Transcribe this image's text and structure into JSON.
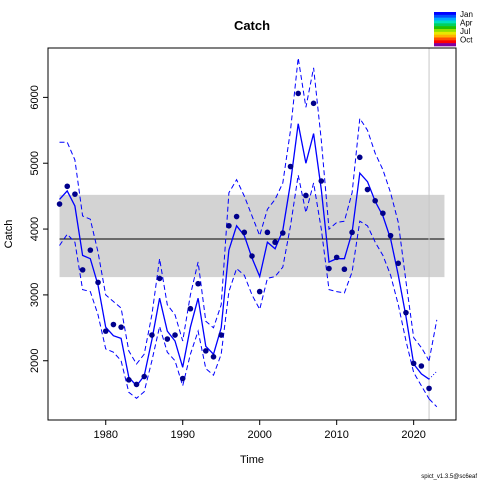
{
  "chart_data": {
    "type": "line",
    "title": "Catch",
    "xlabel": "Time",
    "ylabel": "Catch",
    "xlim": [
      1972.5,
      2025.5
    ],
    "ylim": [
      1100,
      6750
    ],
    "xticks": [
      1980,
      1990,
      2000,
      2010,
      2020
    ],
    "yticks": [
      2000,
      3000,
      4000,
      5000,
      6000
    ],
    "mean_line": 3850,
    "mean_band": [
      3270,
      4520
    ],
    "vline_x": 2022,
    "points": {
      "x": [
        1974,
        1975,
        1976,
        1977,
        1978,
        1979,
        1980,
        1981,
        1982,
        1983,
        1984,
        1985,
        1986,
        1987,
        1988,
        1989,
        1990,
        1991,
        1992,
        1993,
        1994,
        1995,
        1996,
        1997,
        1998,
        1999,
        2000,
        2001,
        2002,
        2003,
        2004,
        2005,
        2006,
        2007,
        2008,
        2009,
        2010,
        2011,
        2012,
        2013,
        2014,
        2015,
        2016,
        2017,
        2018,
        2019,
        2020,
        2021,
        2022
      ],
      "y": [
        4380,
        4650,
        4530,
        3380,
        3680,
        3190,
        2450,
        2550,
        2510,
        1710,
        1640,
        1760,
        2390,
        3250,
        2330,
        2390,
        1730,
        2790,
        3170,
        2150,
        2060,
        2390,
        4050,
        4190,
        3950,
        3590,
        3050,
        3950,
        3800,
        3940,
        4950,
        6060,
        4510,
        5910,
        4730,
        3400,
        3570,
        3390,
        3950,
        5090,
        4600,
        4430,
        4240,
        3900,
        3480,
        2730,
        1960,
        1920,
        1580
      ]
    },
    "series": [
      {
        "style": "solid",
        "x": [
          1974,
          1975,
          1976,
          1977,
          1978,
          1979,
          1980,
          1981,
          1982,
          1983,
          1984,
          1985,
          1986,
          1987,
          1988,
          1989,
          1990,
          1991,
          1992,
          1993,
          1994,
          1995,
          1996,
          1997,
          1998,
          1999,
          2000,
          2001,
          2002,
          2003,
          2004,
          2005,
          2006,
          2007,
          2008,
          2009,
          2010,
          2011,
          2012,
          2013,
          2014,
          2015,
          2016,
          2017,
          2018,
          2019,
          2020,
          2021,
          2022
        ],
        "y": [
          4450,
          4580,
          4350,
          3600,
          3550,
          3150,
          2510,
          2380,
          2340,
          1750,
          1620,
          1770,
          2320,
          2950,
          2450,
          2300,
          1900,
          2510,
          2950,
          2220,
          2100,
          2500,
          3680,
          4050,
          3900,
          3560,
          3280,
          3800,
          3700,
          3980,
          4700,
          5600,
          5000,
          5450,
          4600,
          3500,
          3550,
          3550,
          3950,
          4850,
          4720,
          4420,
          4200,
          3850,
          3300,
          2670,
          1950,
          1800,
          1720
        ]
      },
      {
        "style": "dashed",
        "x": [
          1974,
          1975,
          1976,
          1977,
          1978,
          1979,
          1980,
          1981,
          1982,
          1983,
          1984,
          1985,
          1986,
          1987,
          1988,
          1989,
          1990,
          1991,
          1992,
          1993,
          1994,
          1995,
          1996,
          1997,
          1998,
          1999,
          2000,
          2001,
          2002,
          2003,
          2004,
          2005,
          2006,
          2007,
          2008,
          2009,
          2010,
          2011,
          2012,
          2013,
          2014,
          2015,
          2016,
          2017,
          2018,
          2019,
          2020,
          2021,
          2022
        ],
        "y": [
          5320,
          5320,
          5050,
          4200,
          4150,
          3650,
          3000,
          2900,
          2800,
          2150,
          1950,
          2100,
          2700,
          3550,
          2850,
          2700,
          2300,
          3000,
          3500,
          2600,
          2500,
          2850,
          4550,
          4750,
          4500,
          4200,
          3900,
          4300,
          4450,
          4700,
          5500,
          6600,
          5850,
          6450,
          5350,
          4000,
          4100,
          4120,
          4550,
          5680,
          5500,
          5150,
          4900,
          4550,
          4100,
          3200,
          2350,
          2200,
          2000
        ]
      },
      {
        "style": "dashed",
        "x": [
          1974,
          1975,
          1976,
          1977,
          1978,
          1979,
          1980,
          1981,
          1982,
          1983,
          1984,
          1985,
          1986,
          1987,
          1988,
          1989,
          1990,
          1991,
          1992,
          1993,
          1994,
          1995,
          1996,
          1997,
          1998,
          1999,
          2000,
          2001,
          2002,
          2003,
          2004,
          2005,
          2006,
          2007,
          2008,
          2009,
          2010,
          2011,
          2012,
          2013,
          2014,
          2015,
          2016,
          2017,
          2018,
          2019,
          2020,
          2021,
          2022
        ],
        "y": [
          3750,
          3920,
          3800,
          3080,
          3050,
          2700,
          2180,
          2130,
          2000,
          1520,
          1430,
          1530,
          2000,
          2520,
          2130,
          2000,
          1620,
          2100,
          2450,
          1880,
          1780,
          2100,
          3050,
          3400,
          3300,
          3000,
          2780,
          3250,
          3280,
          3420,
          4050,
          4820,
          4250,
          4700,
          4000,
          3080,
          3050,
          3030,
          3350,
          4120,
          4050,
          3800,
          3600,
          3300,
          2850,
          2300,
          1820,
          1620,
          1420
        ]
      },
      {
        "style": "dotted",
        "x": [
          2022,
          2023
        ],
        "y": [
          1720,
          1840
        ]
      },
      {
        "style": "dashed",
        "x": [
          2022,
          2023
        ],
        "y": [
          2000,
          2620
        ]
      },
      {
        "style": "dashed",
        "x": [
          2022,
          2023
        ],
        "y": [
          1420,
          1300
        ]
      }
    ],
    "legend": {
      "position": "top-right",
      "entries": [
        "Jan",
        "Apr",
        "Jul",
        "Oct"
      ],
      "colors": [
        "#0000ff",
        "#0050ff",
        "#00a8ff",
        "#00e0c0",
        "#00d060",
        "#20c000",
        "#90e000",
        "#e8e800",
        "#ffb000",
        "#ff5000",
        "#ff0000",
        "#8000a0"
      ]
    },
    "colors": {
      "series": "#0000ff",
      "points": "#00008b",
      "band": "#d3d3d3",
      "vline": "#c8c8c8"
    }
  },
  "footer": "spict_v1.3.5@sc6eaf"
}
